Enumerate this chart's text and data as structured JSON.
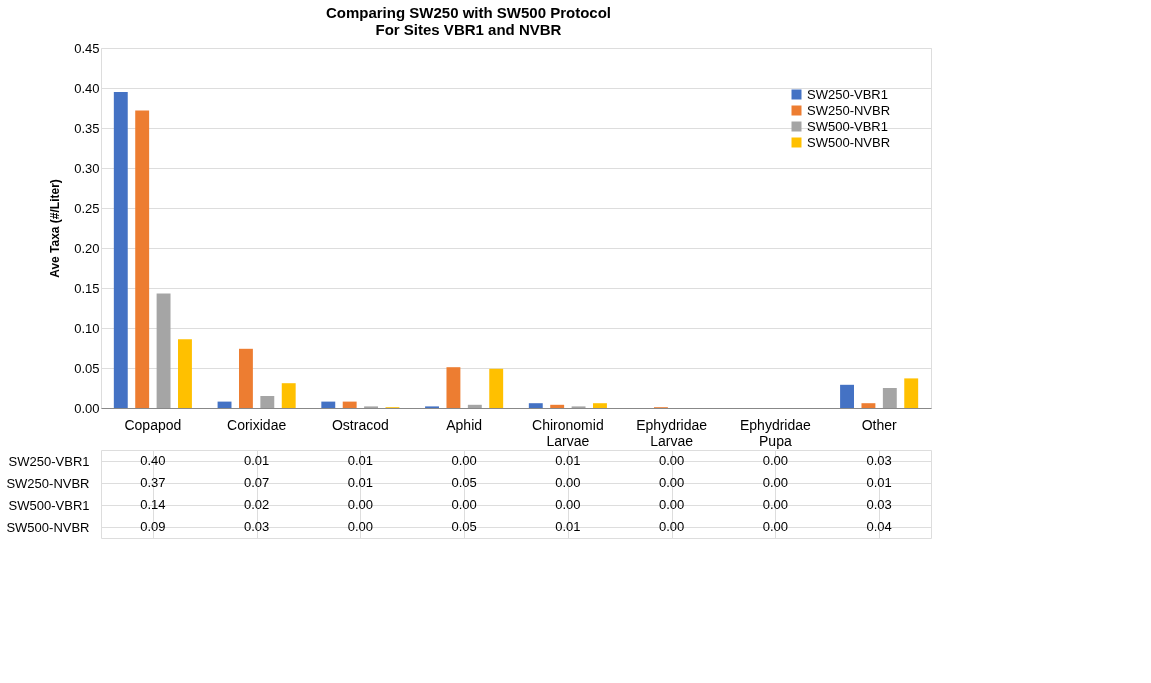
{
  "chart_data": {
    "type": "bar",
    "title": "Comparing SW250 with SW500 Protocol\nFor Sites VBR1 and NVBR",
    "ylabel": "Ave Taxa (#/Liter)",
    "categories": [
      "Copapod",
      "Corixidae",
      "Ostracod",
      "Aphid",
      "Chironomid Larvae",
      "Ephydridae Larvae",
      "Ephydridae Pupa",
      "Other"
    ],
    "series": [
      {
        "name": "SW250-VBR1",
        "color": "#4472c4",
        "values": [
          0.395,
          0.008,
          0.008,
          0.002,
          0.006,
          0,
          0,
          0.029
        ],
        "value_labels": [
          "0.40",
          "0.01",
          "0.01",
          "0.00",
          "0.01",
          "0.00",
          "0.00",
          "0.03"
        ]
      },
      {
        "name": "SW250-NVBR",
        "color": "#ed7d31",
        "values": [
          0.372,
          0.074,
          0.008,
          0.051,
          0.004,
          0.001,
          0,
          0.006
        ],
        "value_labels": [
          "0.37",
          "0.07",
          "0.01",
          "0.05",
          "0.00",
          "0.00",
          "0.00",
          "0.01"
        ]
      },
      {
        "name": "SW500-VBR1",
        "color": "#a5a5a5",
        "values": [
          0.143,
          0.015,
          0.002,
          0.004,
          0.002,
          0,
          0,
          0.025
        ],
        "value_labels": [
          "0.14",
          "0.02",
          "0.00",
          "0.00",
          "0.00",
          "0.00",
          "0.00",
          "0.03"
        ]
      },
      {
        "name": "SW500-NVBR",
        "color": "#ffc000",
        "values": [
          0.086,
          0.031,
          0.001,
          0.049,
          0.006,
          0,
          0,
          0.037
        ],
        "value_labels": [
          "0.09",
          "0.03",
          "0.00",
          "0.05",
          "0.01",
          "0.00",
          "0.00",
          "0.04"
        ]
      }
    ],
    "ylim": [
      0,
      0.45
    ],
    "yticks": [
      {
        "value": 0,
        "label": "0.00"
      },
      0.05,
      {
        "value": 0.1,
        "label": "0.10"
      },
      0.15,
      {
        "value": 0.2,
        "label": "0.20"
      },
      0.25,
      {
        "value": 0.3,
        "label": "0.30"
      },
      0.35,
      {
        "value": 0.4,
        "label": "0.40"
      },
      0.45
    ],
    "grid": "y",
    "legend": "top right"
  }
}
